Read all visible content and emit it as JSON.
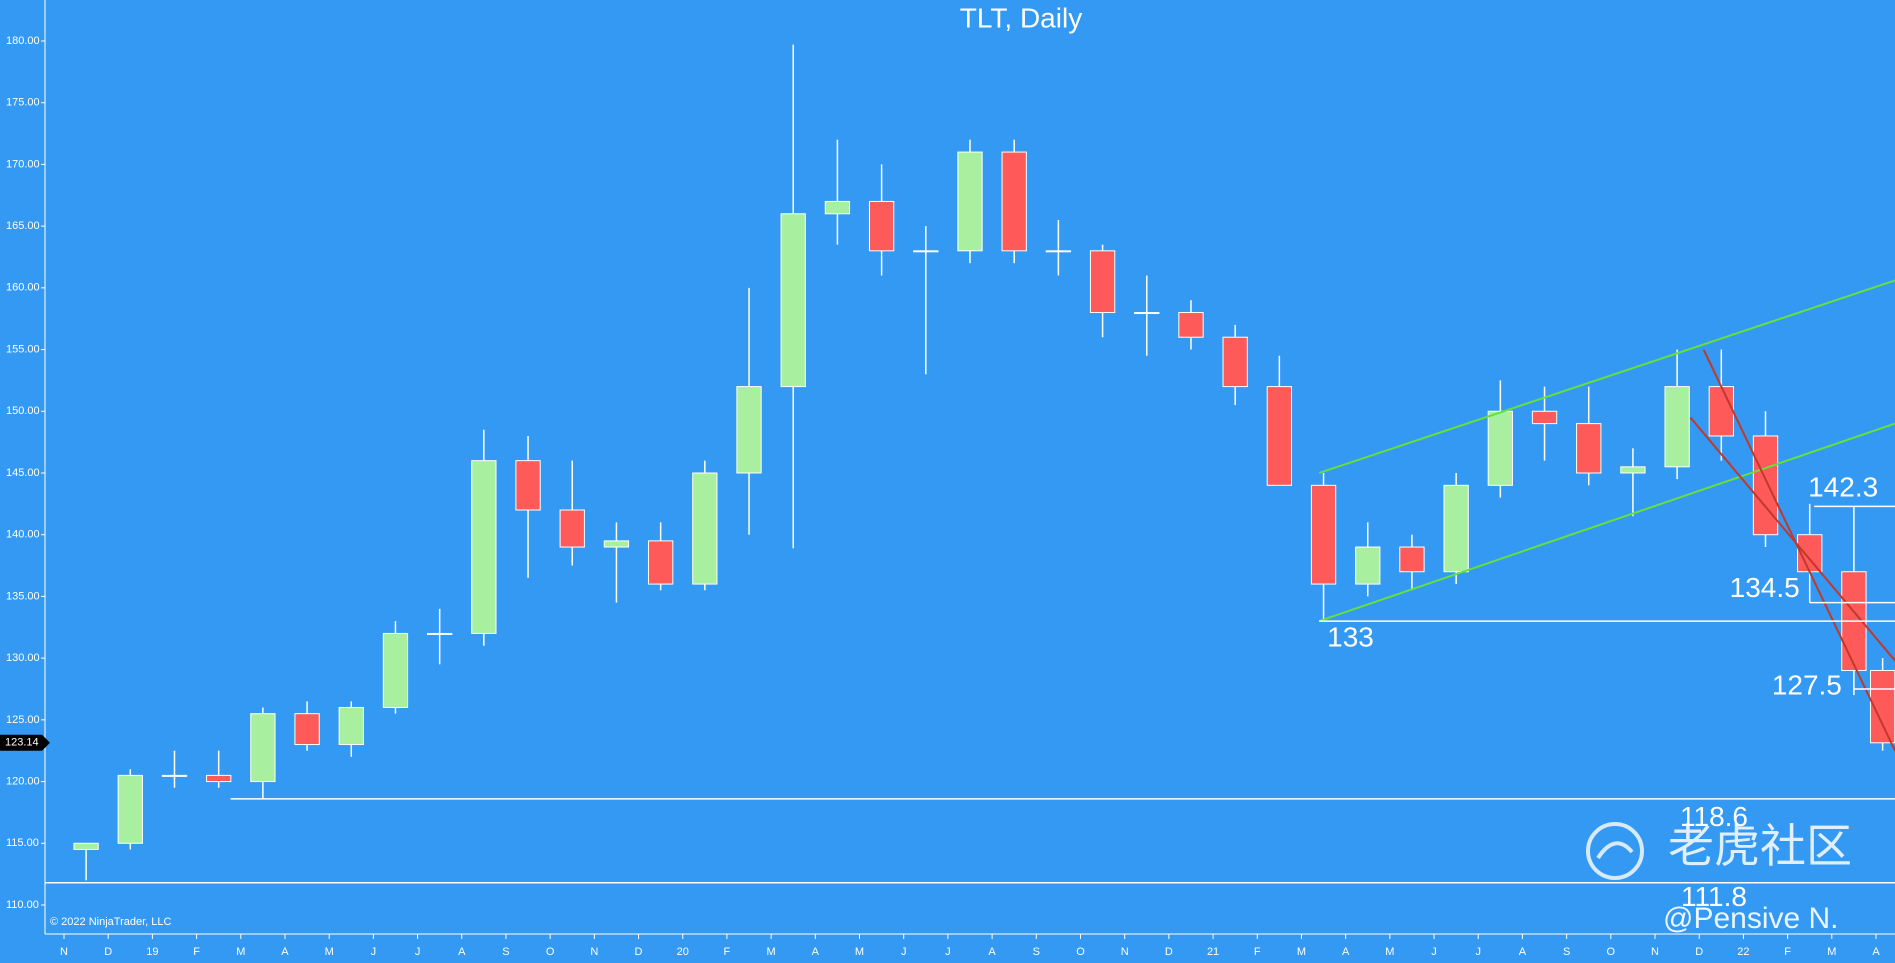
{
  "chart_data": {
    "type": "candlestick",
    "title": "TLT, Daily",
    "copyright": "© 2022 NinjaTrader, LLC",
    "watermark": "老虎社区",
    "author": "@Pensive N.",
    "last_price": 123.14,
    "up_color": "#a8f0a0",
    "down_color": "#ff5a5a",
    "wick_color": "#ffffff",
    "x": [
      0.5,
      1.5,
      2.5,
      3.5,
      4.5,
      5.5,
      6.5,
      7.5,
      8.5,
      9.5,
      10.5,
      11.5,
      12.5,
      13.5,
      14.5,
      15.5,
      16.5,
      17.5,
      18.5,
      19.5,
      20.5,
      21.5,
      22.5,
      23.5,
      24.5,
      25.5,
      26.5,
      27.5,
      28.5,
      29.5,
      30.5,
      31.5,
      32.5,
      33.5,
      34.5,
      35.5,
      36.5,
      37.5,
      38.5,
      39.5,
      40.5,
      41.15
    ],
    "open": [
      114.5,
      115,
      120.5,
      120.5,
      120,
      125.5,
      123,
      126,
      132,
      132,
      146,
      142,
      139,
      139.5,
      136,
      145,
      152,
      166,
      167,
      163,
      163,
      171,
      163,
      163,
      158,
      158,
      156,
      152,
      144,
      136,
      139,
      137,
      144,
      150,
      149,
      145,
      145.5,
      152,
      148,
      140,
      137,
      129
    ],
    "high": [
      115,
      121,
      122.5,
      122.5,
      126,
      126.5,
      126.5,
      133,
      134,
      148.5,
      148,
      146,
      141,
      141,
      146,
      160,
      179.7,
      172,
      170,
      165,
      172,
      172,
      165.5,
      163.5,
      161,
      159,
      157,
      154.5,
      145,
      141,
      140,
      145,
      152.5,
      152,
      152,
      147,
      155,
      155,
      150,
      142.5,
      142.3,
      130
    ],
    "low": [
      112,
      114.5,
      119.5,
      119.5,
      118.6,
      122.5,
      122,
      125.5,
      129.5,
      131,
      136.5,
      137.5,
      134.5,
      135.5,
      135.5,
      140,
      138.9,
      163.5,
      161,
      153,
      162,
      162,
      161,
      156,
      154.5,
      155,
      150.5,
      144,
      133,
      135,
      135.5,
      136,
      143,
      146,
      144,
      141.5,
      144.5,
      146,
      139,
      134.5,
      127,
      122.5
    ],
    "close": [
      115,
      120.5,
      120.5,
      120,
      125.5,
      123,
      126,
      132,
      132,
      146,
      142,
      139,
      139.5,
      136,
      145,
      152,
      166,
      167,
      163,
      163,
      171,
      163,
      163,
      158,
      158,
      156,
      152,
      144,
      136,
      139,
      137,
      144,
      150,
      149,
      145,
      145.5,
      152,
      148,
      140,
      137,
      129,
      123.14
    ],
    "xlim": [
      -0.43,
      41.43
    ],
    "xticks": [
      {
        "value": 0,
        "label": "N"
      },
      {
        "value": 1,
        "label": "D"
      },
      {
        "value": 2,
        "label": "19"
      },
      {
        "value": 3,
        "label": "F"
      },
      {
        "value": 4,
        "label": "M"
      },
      {
        "value": 5,
        "label": "A"
      },
      {
        "value": 6,
        "label": "M"
      },
      {
        "value": 7,
        "label": "J"
      },
      {
        "value": 8,
        "label": "J"
      },
      {
        "value": 9,
        "label": "A"
      },
      {
        "value": 10,
        "label": "S"
      },
      {
        "value": 11,
        "label": "O"
      },
      {
        "value": 12,
        "label": "N"
      },
      {
        "value": 13,
        "label": "D"
      },
      {
        "value": 14,
        "label": "20"
      },
      {
        "value": 15,
        "label": "F"
      },
      {
        "value": 16,
        "label": "M"
      },
      {
        "value": 17,
        "label": "A"
      },
      {
        "value": 18,
        "label": "M"
      },
      {
        "value": 19,
        "label": "J"
      },
      {
        "value": 20,
        "label": "J"
      },
      {
        "value": 21,
        "label": "A"
      },
      {
        "value": 22,
        "label": "S"
      },
      {
        "value": 23,
        "label": "O"
      },
      {
        "value": 24,
        "label": "N"
      },
      {
        "value": 25,
        "label": "D"
      },
      {
        "value": 26,
        "label": "21"
      },
      {
        "value": 27,
        "label": "F"
      },
      {
        "value": 28,
        "label": "M"
      },
      {
        "value": 29,
        "label": "A"
      },
      {
        "value": 30,
        "label": "M"
      },
      {
        "value": 31,
        "label": "J"
      },
      {
        "value": 32,
        "label": "J"
      },
      {
        "value": 33,
        "label": "A"
      },
      {
        "value": 34,
        "label": "S"
      },
      {
        "value": 35,
        "label": "O"
      },
      {
        "value": 36,
        "label": "N"
      },
      {
        "value": 37,
        "label": "D"
      },
      {
        "value": 38,
        "label": "22"
      },
      {
        "value": 39,
        "label": "F"
      },
      {
        "value": 40,
        "label": "M"
      },
      {
        "value": 41,
        "label": "A"
      }
    ],
    "ylim": [
      107.65,
      183.32
    ],
    "yticks": [
      {
        "value": 110,
        "label": "110.00"
      },
      {
        "value": 115,
        "label": "115.00"
      },
      {
        "value": 120,
        "label": "120.00"
      },
      {
        "value": 125,
        "label": "125.00"
      },
      {
        "value": 130,
        "label": "130.00"
      },
      {
        "value": 135,
        "label": "135.00"
      },
      {
        "value": 140,
        "label": "140.00"
      },
      {
        "value": 145,
        "label": "145.00"
      },
      {
        "value": 150,
        "label": "150.00"
      },
      {
        "value": 155,
        "label": "155.00"
      },
      {
        "value": 160,
        "label": "160.00"
      },
      {
        "value": 165,
        "label": "165.00"
      },
      {
        "value": 170,
        "label": "170.00"
      },
      {
        "value": 175,
        "label": "175.00"
      },
      {
        "value": 180,
        "label": "180.00"
      }
    ],
    "level_color": "#ffffff",
    "levels": [
      {
        "value": 133,
        "start": 28.4
      },
      {
        "value": 134.5,
        "start": 39.5
      },
      {
        "value": 142.3,
        "start": 39.6
      },
      {
        "value": 127.5,
        "start": 40.5
      },
      {
        "value": 118.6,
        "start": 3.77
      },
      {
        "value": 111.8,
        "start": -0.43
      }
    ],
    "trendlines": [
      {
        "color": "#66e03a",
        "points": [
          [
            28.4,
            145
          ],
          [
            41.43,
            160.6
          ]
        ]
      },
      {
        "color": "#66e03a",
        "points": [
          [
            28.4,
            133
          ],
          [
            41.43,
            149
          ]
        ]
      },
      {
        "color": "#c0392b",
        "points": [
          [
            37.1,
            155
          ],
          [
            41.43,
            122.5
          ]
        ]
      },
      {
        "color": "#c0392b",
        "points": [
          [
            36.8,
            149.5
          ],
          [
            41.43,
            129.8
          ]
        ]
      }
    ]
  }
}
